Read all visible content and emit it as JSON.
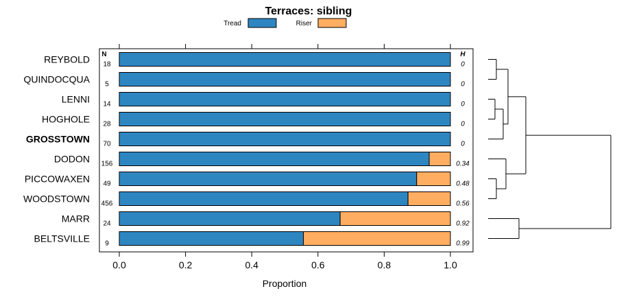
{
  "chart_data": {
    "type": "bar",
    "stacked": true,
    "orientation": "horizontal",
    "title": "Terraces: sibling",
    "xlabel": "Proportion",
    "xlim": [
      0,
      1
    ],
    "xticks": [
      "0.0",
      "0.2",
      "0.4",
      "0.6",
      "0.8",
      "1.0"
    ],
    "xtick_values": [
      0,
      0.2,
      0.4,
      0.6,
      0.8,
      1.0
    ],
    "n_header": "N",
    "h_header": "H",
    "highlighted": "GROSSTOWN",
    "categories": [
      "REYBOLD",
      "QUINDOCQUA",
      "LENNI",
      "HOGHOLE",
      "GROSSTOWN",
      "DODON",
      "PICCOWAXEN",
      "WOODSTOWN",
      "MARR",
      "BELTSVILLE"
    ],
    "n": [
      "18",
      "5",
      "14",
      "28",
      "70",
      "156",
      "49",
      "456",
      "24",
      "9"
    ],
    "h": [
      "0",
      "0",
      "0",
      "0",
      "0",
      "0.34",
      "0.48",
      "0.56",
      "0.92",
      "0.99"
    ],
    "series": [
      {
        "name": "Tread",
        "color": "#2E86C1",
        "values": [
          1.0,
          1.0,
          1.0,
          1.0,
          1.0,
          0.936,
          0.898,
          0.872,
          0.667,
          0.556
        ]
      },
      {
        "name": "Riser",
        "color": "#FFAD60",
        "values": [
          0.0,
          0.0,
          0.0,
          0.0,
          0.0,
          0.064,
          0.102,
          0.128,
          0.333,
          0.444
        ]
      }
    ],
    "dendrogram": "hierarchical clustering of the ten categories"
  }
}
